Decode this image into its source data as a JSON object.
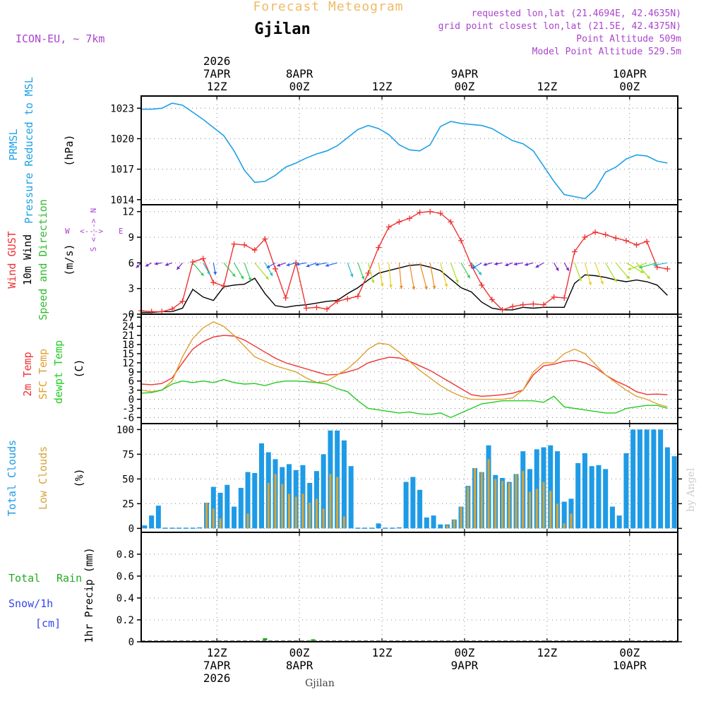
{
  "header": {
    "title": "Forecast Meteogram",
    "location": "Gjilan",
    "model": "ICON-EU, ~ 7km",
    "requested": "requested lon,lat (21.4694E, 42.4635N)",
    "gridpoint": "grid point closest lon,lat (21.5E, 42.4375N)",
    "point_altitude": "Point Altitude 509m",
    "model_altitude": "Model Point Altitude 529.5m",
    "footer_location": "Gjilan",
    "watermark": "by Angel"
  },
  "colors": {
    "pressure": "#1ea0e6",
    "gust": "#ee3333",
    "wind": "#000000",
    "dir": "#33bb33",
    "t2m": "#ee3333",
    "sfc": "#e0a030",
    "dew": "#22cc22",
    "total_cloud": "#1e9be6",
    "low_cloud": "#d4a53a",
    "rain": "#22aa22",
    "snow": "#3344ee",
    "meta": "#aa44cc",
    "title": "#eebb66"
  },
  "chart_data": [
    {
      "type": "line",
      "id": "pressure",
      "ylabel": [
        "PRMSL",
        "Pressure Reduced to MSL"
      ],
      "unit": "(hPa)",
      "ylim": [
        1013.5,
        1024.2
      ],
      "yticks": [
        1014,
        1017,
        1020,
        1023
      ],
      "x_hours": [
        0,
        1.5,
        3,
        4.5,
        6,
        7.5,
        9,
        10.5,
        12,
        13.5,
        15,
        16.5,
        18,
        19.5,
        21,
        22.5,
        24,
        25.5,
        27,
        28.5,
        30,
        31.5,
        33,
        34.5,
        36,
        37.5,
        39,
        40.5,
        42,
        43.5,
        45,
        46.5,
        48,
        49.5,
        51,
        52.5,
        54,
        55.5,
        57,
        58.5,
        60,
        61.5,
        63,
        64.5,
        66,
        67.5,
        69,
        70.5,
        72,
        73.5,
        75,
        76.5
      ],
      "series": [
        {
          "name": "PRMSL",
          "values": [
            1022.9,
            1022.9,
            1023.0,
            1023.5,
            1023.3,
            1022.6,
            1021.9,
            1021.1,
            1020.3,
            1018.8,
            1016.9,
            1015.7,
            1015.8,
            1016.4,
            1017.2,
            1017.6,
            1018.1,
            1018.5,
            1018.8,
            1019.3,
            1020.1,
            1020.9,
            1021.3,
            1021.0,
            1020.4,
            1019.4,
            1018.9,
            1018.8,
            1019.4,
            1021.2,
            1021.7,
            1021.5,
            1021.4,
            1021.3,
            1021.0,
            1020.4,
            1019.8,
            1019.5,
            1018.8,
            1017.3,
            1015.8,
            1014.5,
            1014.3,
            1014.1,
            1015.0,
            1016.7,
            1017.2,
            1018.0,
            1018.4,
            1018.3,
            1017.8,
            1017.6
          ]
        }
      ]
    },
    {
      "type": "line",
      "id": "wind",
      "ylabel": [
        "Wind GUST",
        "10m Wind",
        "Speed and Direction"
      ],
      "unit": "(m/s)",
      "compass": [
        "N",
        "E",
        "S",
        "W"
      ],
      "ylim": [
        0,
        12.8
      ],
      "yticks": [
        0,
        3,
        6,
        9,
        12
      ],
      "x_hours": [
        0,
        1.5,
        3,
        4.5,
        6,
        7.5,
        9,
        10.5,
        12,
        13.5,
        15,
        16.5,
        18,
        19.5,
        21,
        22.5,
        24,
        25.5,
        27,
        28.5,
        30,
        31.5,
        33,
        34.5,
        36,
        37.5,
        39,
        40.5,
        42,
        43.5,
        45,
        46.5,
        48,
        49.5,
        51,
        52.5,
        54,
        55.5,
        57,
        58.5,
        60,
        61.5,
        63,
        64.5,
        66,
        67.5,
        69,
        70.5,
        72,
        73.5,
        75,
        76.5
      ],
      "series": [
        {
          "name": "Wind GUST",
          "values": [
            0.4,
            0.3,
            0.3,
            0.6,
            1.5,
            6.1,
            6.5,
            3.7,
            3.3,
            8.2,
            8.1,
            7.5,
            8.8,
            5.3,
            1.9,
            6.0,
            0.7,
            0.8,
            0.6,
            1.5,
            1.8,
            2.1,
            4.8,
            7.8,
            10.2,
            10.8,
            11.2,
            11.9,
            12.0,
            11.8,
            10.8,
            8.6,
            5.7,
            3.4,
            1.7,
            0.5,
            0.9,
            1.1,
            1.2,
            1.1,
            2.0,
            1.9,
            7.3,
            9.0,
            9.6,
            9.3,
            8.9,
            8.6,
            8.1,
            8.5,
            5.5,
            5.3
          ]
        },
        {
          "name": "10m Wind",
          "values": [
            0.2,
            0.2,
            0.3,
            0.3,
            0.7,
            2.9,
            2.0,
            1.6,
            3.2,
            3.4,
            3.5,
            4.2,
            2.4,
            1.0,
            0.8,
            1.0,
            1.1,
            1.3,
            1.5,
            1.6,
            2.4,
            3.1,
            4.0,
            4.8,
            5.1,
            5.4,
            5.7,
            5.8,
            5.5,
            5.1,
            4.1,
            3.1,
            2.6,
            1.4,
            0.7,
            0.5,
            0.5,
            0.8,
            0.7,
            0.8,
            0.8,
            0.8,
            3.6,
            4.6,
            4.5,
            4.3,
            4.0,
            3.8,
            4.0,
            3.8,
            3.4,
            2.2
          ]
        }
      ],
      "direction_deg": [
        45,
        60,
        80,
        70,
        40,
        320,
        330,
        350,
        320,
        330,
        340,
        320,
        330,
        60,
        70,
        75,
        80,
        70,
        80,
        75,
        340,
        340,
        345,
        350,
        355,
        355,
        350,
        345,
        350,
        345,
        340,
        330,
        320,
        60,
        75,
        80,
        70,
        80,
        75,
        60,
        330,
        330,
        340,
        345,
        340,
        330,
        320,
        300,
        320,
        70,
        75,
        80
      ]
    },
    {
      "type": "line",
      "id": "temperature",
      "ylabel": [
        "2m Temp",
        "SFC Temp",
        "dewpt Temp"
      ],
      "unit": "(C)",
      "ylim": [
        -8,
        28
      ],
      "yticks": [
        -6,
        -3,
        0,
        3,
        6,
        9,
        12,
        15,
        18,
        21,
        24,
        27
      ],
      "x_hours": [
        0,
        1.5,
        3,
        4.5,
        6,
        7.5,
        9,
        10.5,
        12,
        13.5,
        15,
        16.5,
        18,
        19.5,
        21,
        22.5,
        24,
        25.5,
        27,
        28.5,
        30,
        31.5,
        33,
        34.5,
        36,
        37.5,
        39,
        40.5,
        42,
        43.5,
        45,
        46.5,
        48,
        49.5,
        51,
        52.5,
        54,
        55.5,
        57,
        58.5,
        60,
        61.5,
        63,
        64.5,
        66,
        67.5,
        69,
        70.5,
        72,
        73.5,
        75,
        76.5
      ],
      "series": [
        {
          "name": "2m Temp",
          "values": [
            5.0,
            4.8,
            5.2,
            7.0,
            12.0,
            16.5,
            19.0,
            20.5,
            21.0,
            20.8,
            19.5,
            17.5,
            15.5,
            13.5,
            12.0,
            11.0,
            10.0,
            9.0,
            8.0,
            8.2,
            9.0,
            10.0,
            12.0,
            13.0,
            13.8,
            13.6,
            12.5,
            11.0,
            9.5,
            7.5,
            5.5,
            3.5,
            1.5,
            1.0,
            1.2,
            1.5,
            2.0,
            3.0,
            8.0,
            11.0,
            11.5,
            12.5,
            12.8,
            12.0,
            10.5,
            8.0,
            6.0,
            4.5,
            2.5,
            1.6,
            1.7,
            1.5
          ]
        },
        {
          "name": "SFC Temp",
          "values": [
            3.0,
            2.5,
            3.0,
            6.0,
            14.0,
            20.0,
            23.5,
            25.5,
            24.0,
            21.0,
            17.5,
            14.0,
            12.5,
            11.0,
            10.0,
            9.0,
            7.0,
            5.5,
            6.0,
            8.0,
            10.0,
            13.0,
            16.5,
            18.5,
            18.0,
            15.5,
            12.5,
            9.5,
            7.0,
            4.5,
            2.5,
            1.0,
            0.0,
            0.0,
            0.0,
            0.0,
            0.5,
            3.0,
            9.0,
            12.0,
            12.0,
            15.0,
            16.5,
            15.0,
            11.5,
            8.0,
            5.5,
            3.0,
            1.0,
            0.0,
            -1.5,
            -2.5
          ]
        },
        {
          "name": "dewpt Temp",
          "values": [
            2.0,
            2.2,
            3.0,
            5.0,
            6.0,
            5.5,
            6.0,
            5.5,
            6.5,
            5.5,
            5.0,
            5.2,
            4.5,
            5.5,
            6.0,
            6.0,
            5.8,
            5.5,
            5.0,
            3.5,
            2.5,
            -0.5,
            -3.0,
            -3.5,
            -4.0,
            -4.5,
            -4.2,
            -4.8,
            -5.0,
            -4.5,
            -6.0,
            -4.5,
            -3.0,
            -1.5,
            -1.0,
            -0.5,
            -0.5,
            -0.5,
            -0.5,
            -1.0,
            1.0,
            -2.5,
            -3.0,
            -3.5,
            -4.0,
            -4.5,
            -4.5,
            -3.0,
            -2.5,
            -2.0,
            -2.0,
            -3.0
          ]
        }
      ]
    },
    {
      "type": "bar",
      "id": "clouds",
      "ylabel": [
        "Total Clouds",
        "Low Clouds"
      ],
      "unit": "(%)",
      "ylim": [
        -4,
        106
      ],
      "yticks": [
        0,
        25,
        50,
        75,
        100
      ],
      "x_hours": [
        0,
        1,
        2,
        3,
        4,
        5,
        6,
        7,
        8,
        9,
        10,
        11,
        12,
        13,
        14,
        15,
        16,
        17,
        18,
        19,
        20,
        21,
        22,
        23,
        24,
        25,
        26,
        27,
        28,
        29,
        30,
        31,
        32,
        33,
        34,
        35,
        36,
        37,
        38,
        39,
        40,
        41,
        42,
        43,
        44,
        45,
        46,
        47,
        48,
        49,
        50,
        51,
        52,
        53,
        54,
        55,
        56,
        57,
        58,
        59,
        60,
        61,
        62,
        63,
        64,
        65,
        66,
        67,
        68,
        69,
        70,
        71,
        72,
        73,
        74,
        75,
        76,
        77
      ],
      "series": [
        {
          "name": "Total Clouds",
          "values": [
            3,
            13,
            23,
            0,
            0,
            0,
            0,
            0,
            1,
            26,
            42,
            36,
            44,
            22,
            41,
            57,
            56,
            86,
            77,
            70,
            62,
            65,
            59,
            64,
            46,
            58,
            75,
            99,
            99,
            89,
            63,
            0,
            0,
            0,
            5,
            0,
            0,
            1,
            47,
            52,
            39,
            11,
            13,
            4,
            4,
            9,
            22,
            43,
            61,
            57,
            84,
            54,
            51,
            47,
            55,
            78,
            60,
            80,
            82,
            84,
            78,
            27,
            30,
            66,
            76,
            63,
            64,
            60,
            22,
            13,
            76,
            100,
            100,
            100,
            100,
            100,
            82,
            73
          ]
        },
        {
          "name": "Low Clouds",
          "values": [
            0,
            0,
            0,
            0,
            0,
            0,
            0,
            0,
            0,
            26,
            20,
            10,
            0,
            0,
            0,
            15,
            0,
            0,
            46,
            55,
            45,
            35,
            32,
            35,
            26,
            30,
            20,
            55,
            52,
            12,
            0,
            0,
            0,
            0,
            0,
            0,
            0,
            0,
            0,
            0,
            0,
            0,
            0,
            0,
            3,
            9,
            22,
            42,
            61,
            57,
            70,
            50,
            48,
            46,
            55,
            58,
            37,
            40,
            47,
            38,
            25,
            5,
            15,
            0,
            0,
            0,
            0,
            0,
            0,
            0,
            0,
            0,
            0,
            0,
            0,
            0,
            0,
            0
          ]
        }
      ]
    },
    {
      "type": "bar",
      "id": "precip",
      "ylabel": [
        "1hr Precip (mm)"
      ],
      "legend": [
        "Total Rain",
        "Snow/1h",
        "[cm]"
      ],
      "ylim": [
        0,
        1.0
      ],
      "yticks": [
        0,
        0.2,
        0.4,
        0.6,
        0.8
      ],
      "x_hours": [
        18,
        25
      ],
      "series": [
        {
          "name": "Total Rain",
          "values": [
            0.02,
            0.01
          ]
        },
        {
          "name": "Snow/1h",
          "values": [
            0,
            0
          ]
        }
      ]
    }
  ],
  "time_axis": {
    "labels_top": [
      {
        "hour": 11,
        "lines": [
          "2026",
          "7APR",
          "12Z"
        ]
      },
      {
        "hour": 23,
        "lines": [
          "8APR",
          "00Z"
        ]
      },
      {
        "hour": 35,
        "lines": [
          "12Z"
        ]
      },
      {
        "hour": 47,
        "lines": [
          "9APR",
          "00Z"
        ]
      },
      {
        "hour": 59,
        "lines": [
          "12Z"
        ]
      },
      {
        "hour": 71,
        "lines": [
          "10APR",
          "00Z"
        ]
      }
    ],
    "labels_bottom": [
      {
        "hour": 11,
        "lines": [
          "12Z",
          "7APR",
          "2026"
        ]
      },
      {
        "hour": 23,
        "lines": [
          "00Z",
          "8APR"
        ]
      },
      {
        "hour": 35,
        "lines": [
          "12Z"
        ]
      },
      {
        "hour": 47,
        "lines": [
          "00Z",
          "9APR"
        ]
      },
      {
        "hour": 59,
        "lines": [
          "12Z"
        ]
      },
      {
        "hour": 71,
        "lines": [
          "00Z",
          "10APR"
        ]
      }
    ]
  }
}
